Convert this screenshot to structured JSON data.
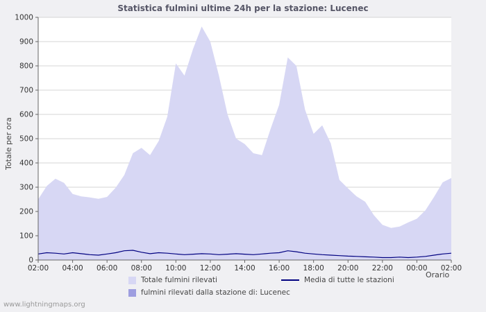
{
  "page": {
    "footer_link": "www.lightningmaps.org"
  },
  "chart_data": {
    "type": "area",
    "title": "Statistica fulmini ultime 24h per la stazione: Lucenec",
    "xlabel": "Orario",
    "ylabel": "Totale per ora",
    "ylim": [
      0,
      1000
    ],
    "y_ticks": [
      0,
      100,
      200,
      300,
      400,
      500,
      600,
      700,
      800,
      900,
      1000
    ],
    "x_tick_labels": [
      "02:00",
      "04:00",
      "06:00",
      "08:00",
      "10:00",
      "12:00",
      "14:00",
      "16:00",
      "18:00",
      "20:00",
      "22:00",
      "00:00",
      "02:00"
    ],
    "x_step_minutes": 30,
    "grid": "horizontal",
    "legend_position": "bottom",
    "plot_bg": "#ffffff",
    "page_bg": "#f0f0f3",
    "grid_color": "#d4d4d4",
    "axis_color": "#666666",
    "series": [
      {
        "name": "Totale fulmini rilevati",
        "type": "area",
        "color": "#d7d7f4",
        "values": [
          250,
          305,
          335,
          318,
          272,
          262,
          258,
          252,
          260,
          298,
          350,
          440,
          462,
          432,
          490,
          590,
          810,
          760,
          870,
          962,
          900,
          760,
          600,
          500,
          478,
          440,
          432,
          540,
          640,
          835,
          800,
          620,
          520,
          555,
          480,
          330,
          295,
          262,
          240,
          185,
          145,
          132,
          138,
          155,
          170,
          205,
          260,
          320,
          338
        ]
      },
      {
        "name": "fulmini rilevati dalla stazione di: Lucenec",
        "type": "area",
        "color": "#9e9ee0",
        "values": [
          0,
          0,
          0,
          0,
          0,
          0,
          0,
          0,
          0,
          0,
          0,
          0,
          0,
          0,
          0,
          0,
          0,
          0,
          0,
          0,
          0,
          0,
          0,
          0,
          0,
          0,
          0,
          0,
          0,
          0,
          0,
          0,
          0,
          0,
          0,
          0,
          0,
          0,
          0,
          0,
          0,
          0,
          0,
          0,
          0,
          0,
          0,
          0,
          0
        ]
      },
      {
        "name": "Media di tutte le stazioni",
        "type": "line",
        "color": "#000080",
        "values": [
          25,
          30,
          28,
          25,
          30,
          26,
          22,
          20,
          25,
          30,
          38,
          40,
          32,
          26,
          30,
          28,
          25,
          22,
          24,
          26,
          25,
          22,
          24,
          26,
          24,
          22,
          25,
          28,
          30,
          38,
          34,
          28,
          25,
          22,
          20,
          18,
          16,
          15,
          13,
          12,
          10,
          10,
          12,
          10,
          12,
          15,
          20,
          25,
          28
        ]
      }
    ]
  }
}
